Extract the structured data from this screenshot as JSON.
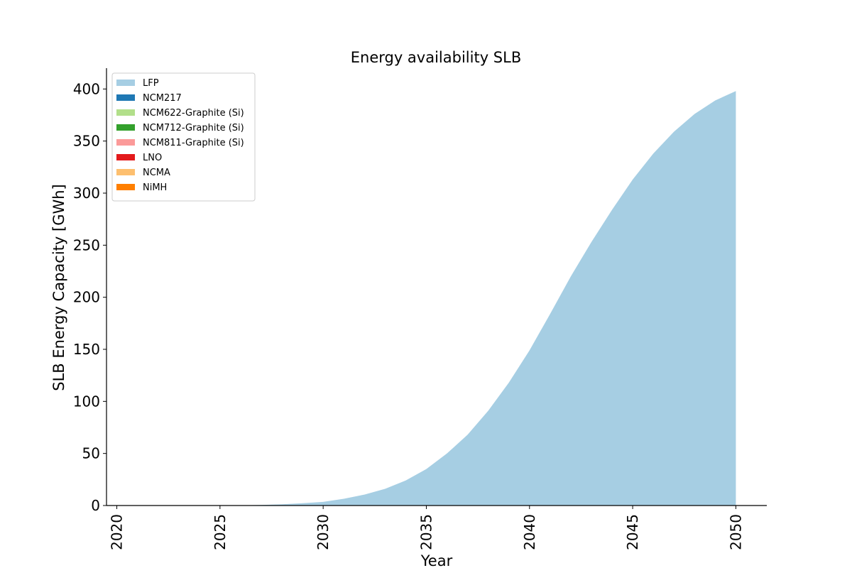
{
  "chart_data": {
    "type": "area",
    "title": "Energy availability SLB",
    "xlabel": "Year",
    "ylabel": "SLB Energy Capacity [GWh]",
    "x": [
      2020,
      2021,
      2022,
      2023,
      2024,
      2025,
      2026,
      2027,
      2028,
      2029,
      2030,
      2031,
      2032,
      2033,
      2034,
      2035,
      2036,
      2037,
      2038,
      2039,
      2040,
      2041,
      2042,
      2043,
      2044,
      2045,
      2046,
      2047,
      2048,
      2049,
      2050
    ],
    "xlim": [
      2019.5,
      2051.5
    ],
    "ylim": [
      0,
      420
    ],
    "xticks": [
      2020,
      2025,
      2030,
      2035,
      2040,
      2045,
      2050
    ],
    "yticks": [
      0,
      50,
      100,
      150,
      200,
      250,
      300,
      350,
      400
    ],
    "legend_position": "upper-left",
    "grid": false,
    "series": [
      {
        "name": "LFP",
        "color": "#a6cee3",
        "values": [
          0,
          0,
          0,
          0,
          0,
          0,
          0.2,
          0.5,
          1.2,
          2.2,
          3.5,
          6.5,
          10.5,
          16,
          24,
          35,
          50,
          68,
          91,
          118,
          149,
          184,
          220,
          253,
          284,
          313,
          338,
          359,
          376,
          389,
          398
        ]
      },
      {
        "name": "NCM217",
        "color": "#1f78b4",
        "values": [
          0,
          0,
          0,
          0,
          0,
          0,
          0,
          0,
          0,
          0,
          0,
          0,
          0,
          0,
          0,
          0,
          0,
          0,
          0,
          0,
          0,
          0,
          0,
          0,
          0,
          0,
          0,
          0,
          0,
          0,
          0
        ]
      },
      {
        "name": "NCM622-Graphite (Si)",
        "color": "#b2df8a",
        "values": [
          0,
          0,
          0,
          0,
          0,
          0,
          0,
          0,
          0,
          0,
          0,
          0,
          0,
          0,
          0,
          0,
          0,
          0,
          0,
          0,
          0,
          0,
          0,
          0,
          0,
          0,
          0,
          0,
          0,
          0,
          0
        ]
      },
      {
        "name": "NCM712-Graphite (Si)",
        "color": "#33a02c",
        "values": [
          0,
          0,
          0,
          0,
          0,
          0,
          0,
          0,
          0,
          0,
          0,
          0,
          0,
          0,
          0,
          0,
          0,
          0,
          0,
          0,
          0,
          0,
          0,
          0,
          0,
          0,
          0,
          0,
          0,
          0,
          0
        ]
      },
      {
        "name": "NCM811-Graphite (Si)",
        "color": "#fb9a99",
        "values": [
          0,
          0,
          0,
          0,
          0,
          0,
          0,
          0,
          0,
          0,
          0,
          0,
          0,
          0,
          0,
          0,
          0,
          0,
          0,
          0,
          0,
          0,
          0,
          0,
          0,
          0,
          0,
          0,
          0,
          0,
          0
        ]
      },
      {
        "name": "LNO",
        "color": "#e31a1c",
        "values": [
          0,
          0,
          0,
          0,
          0,
          0,
          0,
          0,
          0,
          0,
          0,
          0,
          0,
          0,
          0,
          0,
          0,
          0,
          0,
          0,
          0,
          0,
          0,
          0,
          0,
          0,
          0,
          0,
          0,
          0,
          0
        ]
      },
      {
        "name": "NCMA",
        "color": "#fdbf6f",
        "values": [
          0,
          0,
          0,
          0,
          0,
          0,
          0,
          0,
          0,
          0,
          0,
          0,
          0,
          0,
          0,
          0,
          0,
          0,
          0,
          0,
          0,
          0,
          0,
          0,
          0,
          0,
          0,
          0,
          0,
          0,
          0
        ]
      },
      {
        "name": "NiMH",
        "color": "#ff7f00",
        "values": [
          0,
          0,
          0,
          0,
          0,
          0,
          0,
          0,
          0,
          0,
          0,
          0,
          0,
          0,
          0,
          0,
          0,
          0,
          0,
          0,
          0,
          0,
          0,
          0,
          0,
          0,
          0,
          0,
          0,
          0,
          0
        ]
      }
    ]
  }
}
